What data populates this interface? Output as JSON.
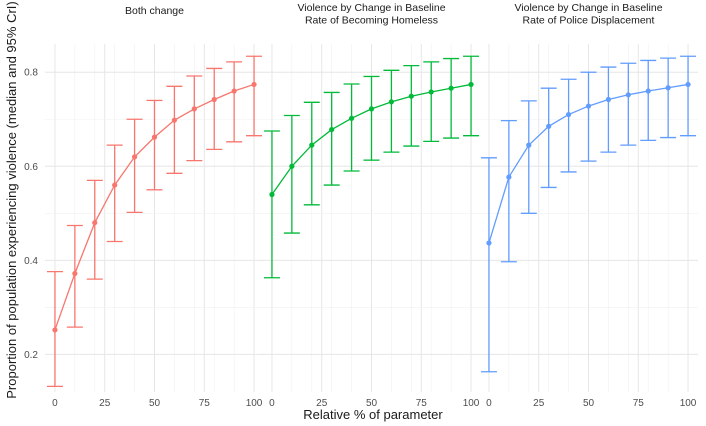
{
  "chart_data": {
    "type": "line",
    "xlabel": "Relative % of parameter",
    "ylabel": "Proportion of population experiencing violence (median and 95% CrI)",
    "x_ticks": [
      0,
      25,
      50,
      75,
      100
    ],
    "y_ticks": [
      0.2,
      0.4,
      0.6,
      0.8
    ],
    "xlim": [
      -5,
      105
    ],
    "ylim": [
      0.12,
      0.86
    ],
    "grid": true,
    "legend": "none",
    "x": [
      0,
      10,
      20,
      30,
      40,
      50,
      60,
      70,
      80,
      90,
      100
    ],
    "panels": [
      {
        "title_lines": [
          "Both change"
        ],
        "color": "#F8766D",
        "median": [
          0.252,
          0.372,
          0.48,
          0.56,
          0.62,
          0.662,
          0.698,
          0.722,
          0.742,
          0.76,
          0.774
        ],
        "lower": [
          0.132,
          0.258,
          0.36,
          0.44,
          0.502,
          0.55,
          0.585,
          0.612,
          0.636,
          0.652,
          0.665
        ],
        "upper": [
          0.376,
          0.474,
          0.57,
          0.645,
          0.7,
          0.74,
          0.77,
          0.792,
          0.808,
          0.822,
          0.834
        ]
      },
      {
        "title_lines": [
          "Violence by Change in Baseline",
          "Rate of Becoming Homeless"
        ],
        "color": "#00BA38",
        "median": [
          0.54,
          0.6,
          0.645,
          0.678,
          0.702,
          0.722,
          0.737,
          0.749,
          0.758,
          0.766,
          0.774
        ],
        "lower": [
          0.363,
          0.458,
          0.518,
          0.56,
          0.59,
          0.613,
          0.63,
          0.643,
          0.653,
          0.66,
          0.665
        ],
        "upper": [
          0.675,
          0.708,
          0.736,
          0.757,
          0.775,
          0.791,
          0.804,
          0.814,
          0.822,
          0.829,
          0.834
        ]
      },
      {
        "title_lines": [
          "Violence by Change in Baseline",
          "Rate of Police Displacement"
        ],
        "color": "#619CFF",
        "median": [
          0.437,
          0.577,
          0.645,
          0.685,
          0.71,
          0.728,
          0.742,
          0.752,
          0.76,
          0.767,
          0.774
        ],
        "lower": [
          0.163,
          0.397,
          0.5,
          0.555,
          0.588,
          0.611,
          0.63,
          0.645,
          0.655,
          0.661,
          0.665
        ],
        "upper": [
          0.618,
          0.697,
          0.739,
          0.766,
          0.785,
          0.8,
          0.811,
          0.819,
          0.825,
          0.83,
          0.834
        ]
      }
    ]
  }
}
